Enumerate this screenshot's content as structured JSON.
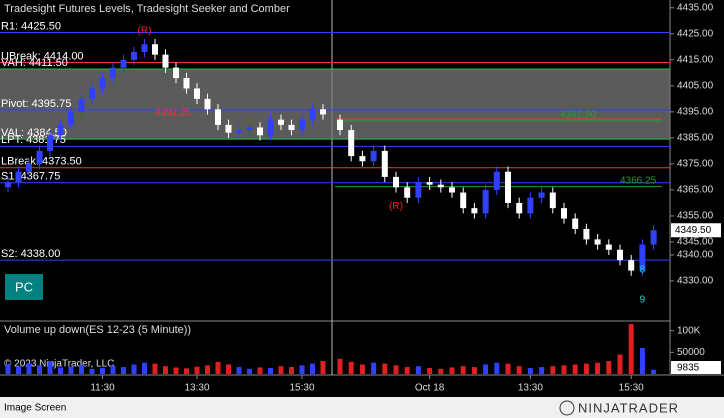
{
  "chart_data": {
    "type": "candlestick",
    "title": "Tradesight Futures Levels, Tradesight Seeker and Comber",
    "open": [
      4366,
      4368,
      4372,
      4375,
      4380,
      4386,
      4390,
      4395,
      4400,
      4404,
      4408,
      4412,
      4415,
      4418,
      4421,
      4417,
      4412,
      4408,
      4404,
      4400,
      4396,
      4390,
      4387,
      4388,
      4389,
      4386,
      4392,
      4390,
      4388,
      4392,
      4396,
      4392,
      4388,
      4378,
      4376,
      4380,
      4370,
      4366,
      4362,
      4368,
      4367,
      4366,
      4364,
      4358,
      4356,
      4365,
      4372,
      4360,
      4356,
      4362,
      4364,
      4358,
      4354,
      4350,
      4346,
      4344,
      4342,
      4338,
      4334,
      4344
    ],
    "high": [
      4370,
      4374,
      4377,
      4382,
      4388,
      4392,
      4397,
      4402,
      4406,
      4410,
      4414,
      4417,
      4420,
      4423,
      4423,
      4419,
      4414,
      4410,
      4406,
      4402,
      4398,
      4392,
      4390,
      4391,
      4391,
      4394,
      4394,
      4392,
      4394,
      4398,
      4398,
      4394,
      4390,
      4380,
      4382,
      4382,
      4372,
      4368,
      4370,
      4370,
      4369,
      4368,
      4366,
      4360,
      4367,
      4374,
      4374,
      4362,
      4364,
      4366,
      4366,
      4360,
      4356,
      4352,
      4348,
      4346,
      4344,
      4340,
      4346,
      4351.5
    ],
    "low": [
      4364,
      4366,
      4370,
      4373,
      4378,
      4384,
      4388,
      4393,
      4398,
      4402,
      4406,
      4410,
      4413,
      4416,
      4415,
      4410,
      4406,
      4402,
      4398,
      4394,
      4388,
      4385,
      4385,
      4386,
      4384,
      4384,
      4388,
      4386,
      4386,
      4390,
      4392,
      4386,
      4376,
      4374,
      4374,
      4368,
      4364,
      4360,
      4360,
      4365,
      4364,
      4362,
      4356,
      4354,
      4354,
      4363,
      4358,
      4354,
      4354,
      4360,
      4356,
      4352,
      4348,
      4344,
      4342,
      4340,
      4336,
      4332,
      4332,
      4342
    ],
    "close": [
      4368,
      4372,
      4375,
      4380,
      4386,
      4390,
      4395,
      4400,
      4404,
      4408,
      4412,
      4415,
      4418,
      4421,
      4417,
      4412,
      4408,
      4404,
      4400,
      4396,
      4390,
      4387,
      4388,
      4389,
      4386,
      4392,
      4390,
      4388,
      4392,
      4396,
      4394,
      4388,
      4378,
      4376,
      4380,
      4370,
      4366,
      4362,
      4368,
      4367,
      4366,
      4364,
      4358,
      4356,
      4365,
      4372,
      4360,
      4356,
      4362,
      4364,
      4358,
      4354,
      4350,
      4346,
      4344,
      4342,
      4338,
      4334,
      4344,
      4349.5
    ],
    "last_price_label": "4349.50",
    "ylim": [
      4315,
      4438
    ],
    "yticks": [
      {
        "value": 4435,
        "label": "4435.00"
      },
      {
        "value": 4425,
        "label": "4425.00"
      },
      {
        "value": 4415,
        "label": "4415.00"
      },
      {
        "value": 4405,
        "label": "4405.00"
      },
      {
        "value": 4395,
        "label": "4395.00"
      },
      {
        "value": 4385,
        "label": "4385.00"
      },
      {
        "value": 4375,
        "label": "4375.00"
      },
      {
        "value": 4365,
        "label": "4365.00"
      },
      {
        "value": 4355,
        "label": "4355.00"
      },
      {
        "value": 4345,
        "label": "4345.00"
      },
      {
        "value": 4340,
        "label": "4340.00"
      },
      {
        "value": 4330,
        "label": "4330.00"
      }
    ],
    "xticks": [
      {
        "value": 9,
        "label": "11:30"
      },
      {
        "value": 18,
        "label": "13:30"
      },
      {
        "value": 28,
        "label": "15:30"
      },
      {
        "value": 39,
        "label": "Oct 18"
      },
      {
        "value": 48,
        "label": "13:30"
      },
      {
        "value": 57,
        "label": "15:30"
      }
    ],
    "levels": [
      {
        "label": "R1: 4425.50",
        "value": 4425.5,
        "color": "#3040ff"
      },
      {
        "label": "UBreak: 4414.00",
        "value": 4414,
        "color": "#ff3030"
      },
      {
        "label": "VAH: 4411.50",
        "value": 4411.5,
        "color": "#20c040"
      },
      {
        "label": "Pivot: 4395.75",
        "value": 4395.75,
        "color": "#3040ff"
      },
      {
        "label": "VAL: 4384.50",
        "value": 4384.5,
        "color": "#20c040"
      },
      {
        "label": "LPT: 4381.75",
        "value": 4381.75,
        "color": "#3040ff"
      },
      {
        "label": "LBreak: 4373.50",
        "value": 4373.5,
        "color": "#ff3030"
      },
      {
        "label": "S1: 4367.75",
        "value": 4367.75,
        "color": "#3040ff"
      },
      {
        "label": "S2: 4338.00",
        "value": 4338,
        "color": "#3040ff"
      }
    ],
    "session_levels": [
      {
        "label": "4392.25",
        "value": 4392.25,
        "color": "#ff3030"
      },
      {
        "label": "4391.50",
        "value": 4391.5,
        "color": "#20a030"
      },
      {
        "label": "4366.25",
        "value": 4366.25,
        "color": "#20a030"
      }
    ],
    "annotations": [
      {
        "text": "(R)",
        "color": "#ff2020"
      },
      {
        "text": "(R)",
        "color": "#ff2020"
      },
      {
        "text": "8",
        "color": "#20d0e0"
      },
      {
        "text": "9",
        "color": "#20d0e0"
      }
    ],
    "volume_title": "Volume up down(ES 12-23 (5 Minute))",
    "volume": [
      22000,
      18000,
      25000,
      20000,
      30000,
      15000,
      17000,
      21000,
      12000,
      14000,
      19000,
      16000,
      22000,
      26000,
      24000,
      18000,
      15000,
      13000,
      17000,
      20000,
      28000,
      22000,
      16000,
      12000,
      15000,
      14000,
      18000,
      16000,
      20000,
      24000,
      30000,
      35000,
      28000,
      22000,
      26000,
      24000,
      20000,
      16000,
      18000,
      14000,
      12000,
      15000,
      18000,
      16000,
      22000,
      26000,
      24000,
      18000,
      14000,
      16000,
      18000,
      20000,
      22000,
      24000,
      26000,
      30000,
      45000,
      115000,
      60000,
      9835
    ],
    "volume_ylim": [
      0,
      120000
    ],
    "volume_yticks": [
      {
        "value": 100000,
        "label": "100K"
      },
      50000
    ],
    "copyright": "© 2023 NinjaTrader, LLC",
    "badge": "PC",
    "footer": "Image Screen",
    "logo": "NINJATRADER"
  }
}
